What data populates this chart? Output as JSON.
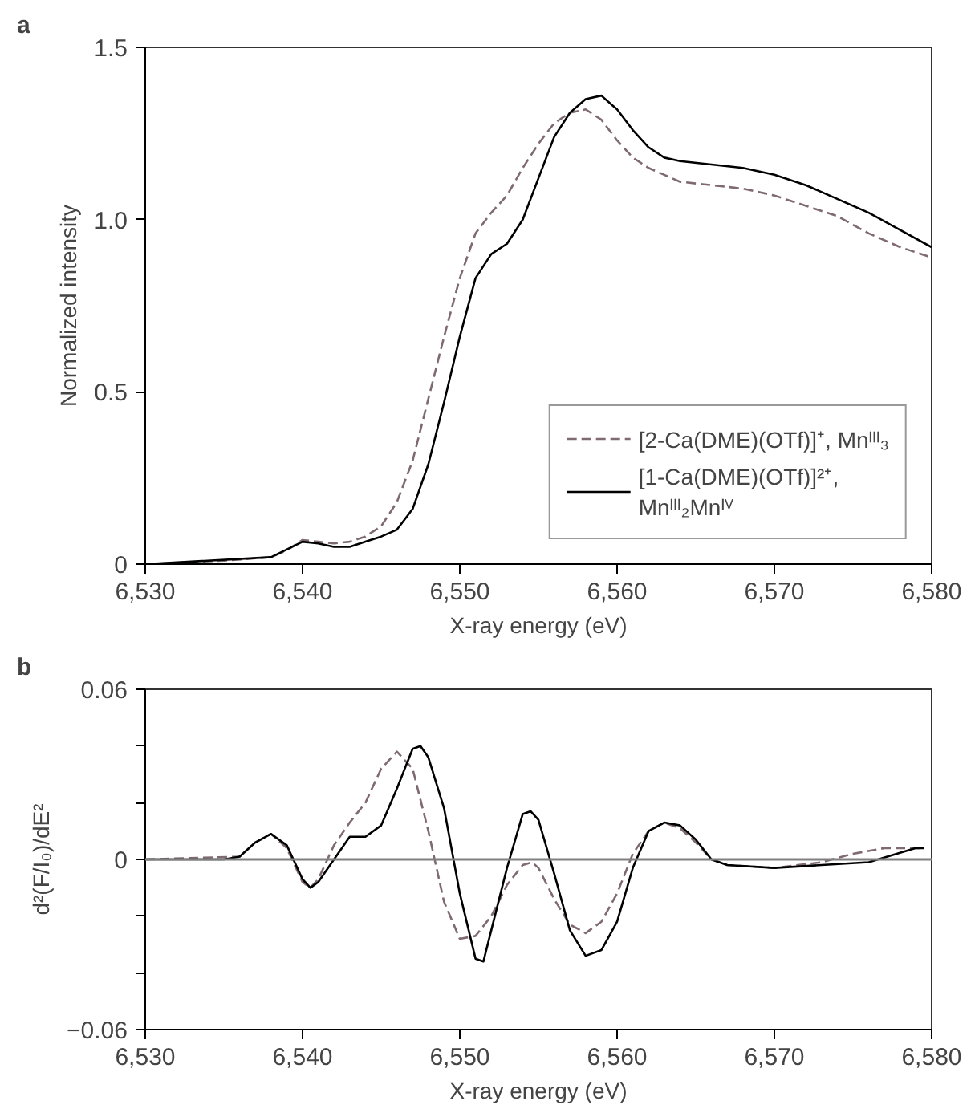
{
  "chart_data": [
    {
      "type": "line",
      "xlabel": "X-ray energy (eV)",
      "ylabel": "Normalized intensity",
      "annotations": [
        "a"
      ],
      "xlim": [
        6530,
        6580
      ],
      "xticks": [
        {
          "value": 6530,
          "label": "6,530"
        },
        {
          "value": 6540,
          "label": "6,540"
        },
        {
          "value": 6550,
          "label": "6,550"
        },
        {
          "value": 6560,
          "label": "6,560"
        },
        {
          "value": 6570,
          "label": "6,570"
        },
        {
          "value": 6580,
          "label": "6,580"
        }
      ],
      "ylim": [
        0,
        1.5
      ],
      "yticks": [
        0,
        0.5,
        {
          "value": 1.0,
          "label": "1.0"
        },
        1.5
      ],
      "grid": false,
      "legend": "bottom right",
      "series": [
        {
          "name": "[2-Ca(DME)(OTf)]⁺, Mnᴵᴵᴵ₃",
          "color": "#7f6a73",
          "line_style": "dashed",
          "x": [
            6530,
            6535,
            6538,
            6539,
            6540,
            6541,
            6542,
            6543,
            6544,
            6545,
            6546,
            6547,
            6548,
            6549,
            6550,
            6551,
            6552,
            6553,
            6554,
            6555,
            6556,
            6557,
            6558,
            6559,
            6560,
            6561,
            6562,
            6563,
            6564,
            6566,
            6568,
            6570,
            6572,
            6574,
            6576,
            6578,
            6580
          ],
          "values": [
            0,
            0.01,
            0.02,
            0.04,
            0.07,
            0.065,
            0.06,
            0.065,
            0.08,
            0.11,
            0.18,
            0.3,
            0.48,
            0.66,
            0.83,
            0.96,
            1.02,
            1.07,
            1.15,
            1.22,
            1.28,
            1.31,
            1.32,
            1.29,
            1.23,
            1.18,
            1.15,
            1.13,
            1.11,
            1.1,
            1.09,
            1.07,
            1.04,
            1.01,
            0.96,
            0.92,
            0.89
          ]
        },
        {
          "name": "[1-Ca(DME)(OTf)]²⁺,\nMnᴵᴵᴵ₂Mnᴵⱽ",
          "color": "#000000",
          "line_style": "solid",
          "x": [
            6530,
            6538,
            6540,
            6541,
            6542,
            6543,
            6544,
            6545,
            6546,
            6547,
            6548,
            6549,
            6550,
            6551,
            6552,
            6553,
            6554,
            6555,
            6556,
            6557,
            6558,
            6559,
            6560,
            6561,
            6562,
            6563,
            6564,
            6566,
            6568,
            6570,
            6572,
            6574,
            6576,
            6578,
            6580
          ],
          "values": [
            0,
            0.02,
            0.065,
            0.06,
            0.05,
            0.05,
            0.065,
            0.08,
            0.1,
            0.16,
            0.29,
            0.47,
            0.66,
            0.83,
            0.9,
            0.93,
            1.0,
            1.12,
            1.24,
            1.31,
            1.35,
            1.36,
            1.32,
            1.26,
            1.21,
            1.18,
            1.17,
            1.16,
            1.15,
            1.13,
            1.1,
            1.06,
            1.02,
            0.97,
            0.92
          ]
        }
      ]
    },
    {
      "type": "line",
      "xlabel": "X-ray energy (eV)",
      "ylabel": "d²(F/I₀)/dE²",
      "annotations": [
        "b"
      ],
      "xlim": [
        6530,
        6580
      ],
      "xticks": [
        {
          "value": 6530,
          "label": "6,530"
        },
        {
          "value": 6540,
          "label": "6,540"
        },
        {
          "value": 6550,
          "label": "6,550"
        },
        {
          "value": 6560,
          "label": "6,560"
        },
        {
          "value": 6570,
          "label": "6,570"
        },
        {
          "value": 6580,
          "label": "6,580"
        }
      ],
      "ylim": [
        -0.06,
        0.06
      ],
      "yticks": [
        {
          "value": -0.06,
          "label": "−0.06"
        },
        {
          "value": -0.04,
          "label": null
        },
        {
          "value": -0.02,
          "label": null
        },
        0,
        {
          "value": 0.02,
          "label": null
        },
        {
          "value": 0.04,
          "label": null
        },
        0.06
      ],
      "grid": false,
      "legend": false,
      "ref_lines": [
        {
          "axis": "y",
          "value": 0,
          "color": "#808080"
        }
      ],
      "series": [
        {
          "color": "#7f6a73",
          "line_style": "dashed",
          "x": [
            6530,
            6536,
            6537,
            6538,
            6539,
            6540,
            6540.5,
            6541,
            6542,
            6543,
            6544,
            6545,
            6546,
            6547,
            6548,
            6549,
            6550,
            6551,
            6552,
            6553,
            6554,
            6554.6,
            6555,
            6556,
            6557,
            6558,
            6559,
            6560,
            6561,
            6562,
            6563,
            6564,
            6565,
            6566,
            6567,
            6570,
            6573,
            6575,
            6577,
            6579.5
          ],
          "values": [
            0,
            0.001,
            0.006,
            0.009,
            0.004,
            -0.008,
            -0.01,
            -0.007,
            0.005,
            0.013,
            0.02,
            0.032,
            0.038,
            0.032,
            0.01,
            -0.015,
            -0.028,
            -0.027,
            -0.02,
            -0.009,
            -0.002,
            -0.001,
            -0.003,
            -0.014,
            -0.023,
            -0.026,
            -0.022,
            -0.012,
            0.002,
            0.01,
            0.013,
            0.011,
            0.006,
            0,
            -0.002,
            -0.003,
            -0.001,
            0.002,
            0.004,
            0.004
          ]
        },
        {
          "color": "#000000",
          "line_style": "solid",
          "x": [
            6530,
            6535,
            6536,
            6537,
            6538,
            6539,
            6540,
            6540.5,
            6541,
            6542,
            6543,
            6544,
            6545,
            6546,
            6547,
            6547.5,
            6548,
            6549,
            6550,
            6551,
            6551.5,
            6552,
            6553,
            6554,
            6554.5,
            6555,
            6556,
            6557,
            6558,
            6559,
            6560,
            6561,
            6562,
            6563,
            6564,
            6565,
            6566,
            6567,
            6570,
            6573,
            6576,
            6579,
            6579.5
          ],
          "values": [
            0,
            0,
            0.001,
            0.006,
            0.009,
            0.005,
            -0.007,
            -0.01,
            -0.008,
            0,
            0.008,
            0.008,
            0.012,
            0.025,
            0.039,
            0.04,
            0.036,
            0.018,
            -0.012,
            -0.035,
            -0.036,
            -0.025,
            -0.003,
            0.016,
            0.017,
            0.014,
            -0.005,
            -0.025,
            -0.034,
            -0.032,
            -0.022,
            -0.003,
            0.01,
            0.013,
            0.012,
            0.007,
            0,
            -0.002,
            -0.003,
            -0.002,
            -0.001,
            0.004,
            0.004
          ]
        }
      ]
    }
  ]
}
